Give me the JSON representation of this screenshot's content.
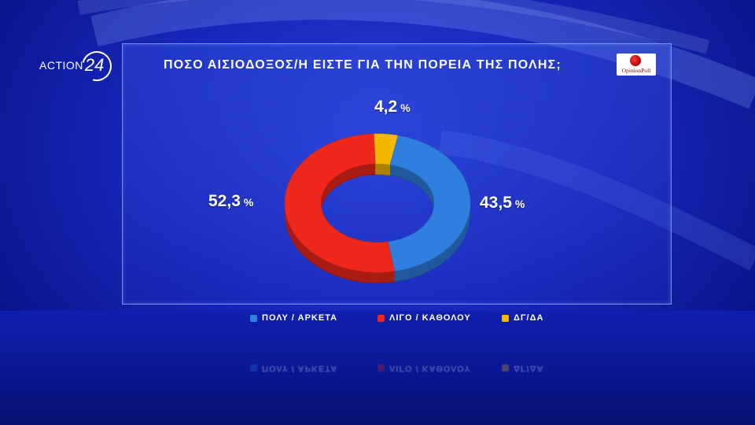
{
  "channel": {
    "logo_text": "ACTION",
    "logo_number": "24"
  },
  "pollster": {
    "logo_text": "OpinionPoll"
  },
  "chart_data": {
    "type": "pie",
    "title": "ΠΟΣΟ ΑΙΣΙΟΔΟΞΟΣ/Η ΕΙΣΤΕ ΓΙΑ ΤΗΝ ΠΟΡΕΙΑ ΤΗΣ ΠΟΛΗΣ;",
    "donut": true,
    "categories": [
      "ΠΟΛΥ / ΑΡΚΕΤΑ",
      "ΛΙΓΟ / ΚΑΘΟΛΟΥ",
      "ΔΓ/ΔΑ"
    ],
    "values": [
      43.5,
      52.3,
      4.2
    ],
    "value_labels": [
      "43,5",
      "52,3",
      "4,2"
    ],
    "unit": "%",
    "colors": [
      "#2f7fe0",
      "#f0281c",
      "#f5b800"
    ],
    "legend_position": "bottom"
  }
}
